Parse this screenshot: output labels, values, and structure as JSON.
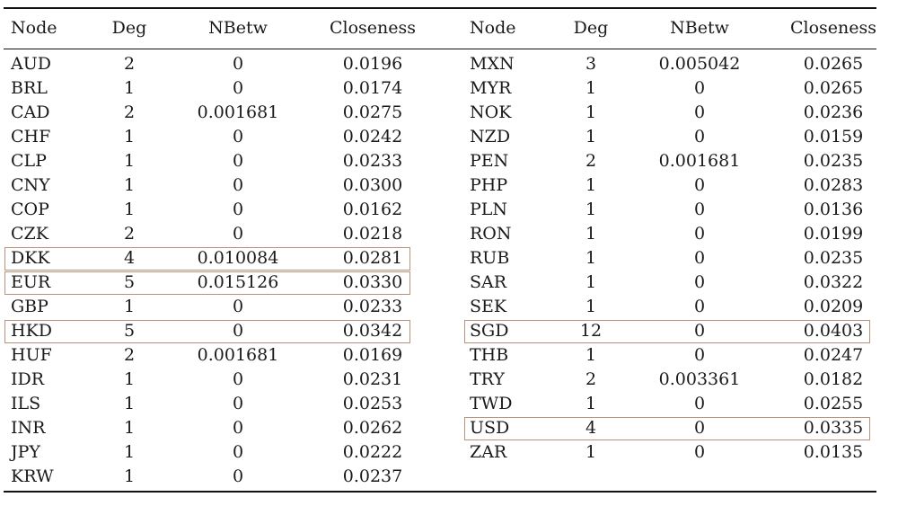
{
  "columns": [
    "Node",
    "Deg",
    "NBetw",
    "Closeness"
  ],
  "left_rows": [
    {
      "node": "AUD",
      "deg": "2",
      "nbetw": "0",
      "closeness": "0.0196"
    },
    {
      "node": "BRL",
      "deg": "1",
      "nbetw": "0",
      "closeness": "0.0174"
    },
    {
      "node": "CAD",
      "deg": "2",
      "nbetw": "0.001681",
      "closeness": "0.0275"
    },
    {
      "node": "CHF",
      "deg": "1",
      "nbetw": "0",
      "closeness": "0.0242"
    },
    {
      "node": "CLP",
      "deg": "1",
      "nbetw": "0",
      "closeness": "0.0233"
    },
    {
      "node": "CNY",
      "deg": "1",
      "nbetw": "0",
      "closeness": "0.0300"
    },
    {
      "node": "COP",
      "deg": "1",
      "nbetw": "0",
      "closeness": "0.0162"
    },
    {
      "node": "CZK",
      "deg": "2",
      "nbetw": "0",
      "closeness": "0.0218"
    },
    {
      "node": "DKK",
      "deg": "4",
      "nbetw": "0.010084",
      "closeness": "0.0281",
      "highlighted": true
    },
    {
      "node": "EUR",
      "deg": "5",
      "nbetw": "0.015126",
      "closeness": "0.0330",
      "highlighted": true
    },
    {
      "node": "GBP",
      "deg": "1",
      "nbetw": "0",
      "closeness": "0.0233"
    },
    {
      "node": "HKD",
      "deg": "5",
      "nbetw": "0",
      "closeness": "0.0342",
      "highlighted": true
    },
    {
      "node": "HUF",
      "deg": "2",
      "nbetw": "0.001681",
      "closeness": "0.0169"
    },
    {
      "node": "IDR",
      "deg": "1",
      "nbetw": "0",
      "closeness": "0.0231"
    },
    {
      "node": "ILS",
      "deg": "1",
      "nbetw": "0",
      "closeness": "0.0253"
    },
    {
      "node": "INR",
      "deg": "1",
      "nbetw": "0",
      "closeness": "0.0262"
    },
    {
      "node": "JPY",
      "deg": "1",
      "nbetw": "0",
      "closeness": "0.0222"
    },
    {
      "node": "KRW",
      "deg": "1",
      "nbetw": "0",
      "closeness": "0.0237"
    }
  ],
  "right_rows": [
    {
      "node": "MXN",
      "deg": "3",
      "nbetw": "0.005042",
      "closeness": "0.0265"
    },
    {
      "node": "MYR",
      "deg": "1",
      "nbetw": "0",
      "closeness": "0.0265"
    },
    {
      "node": "NOK",
      "deg": "1",
      "nbetw": "0",
      "closeness": "0.0236"
    },
    {
      "node": "NZD",
      "deg": "1",
      "nbetw": "0",
      "closeness": "0.0159"
    },
    {
      "node": "PEN",
      "deg": "2",
      "nbetw": "0.001681",
      "closeness": "0.0235"
    },
    {
      "node": "PHP",
      "deg": "1",
      "nbetw": "0",
      "closeness": "0.0283"
    },
    {
      "node": "PLN",
      "deg": "1",
      "nbetw": "0",
      "closeness": "0.0136"
    },
    {
      "node": "RON",
      "deg": "1",
      "nbetw": "0",
      "closeness": "0.0199"
    },
    {
      "node": "RUB",
      "deg": "1",
      "nbetw": "0",
      "closeness": "0.0235"
    },
    {
      "node": "SAR",
      "deg": "1",
      "nbetw": "0",
      "closeness": "0.0322"
    },
    {
      "node": "SEK",
      "deg": "1",
      "nbetw": "0",
      "closeness": "0.0209"
    },
    {
      "node": "SGD",
      "deg": "12",
      "nbetw": "0",
      "closeness": "0.0403",
      "highlighted": true
    },
    {
      "node": "THB",
      "deg": "1",
      "nbetw": "0",
      "closeness": "0.0247"
    },
    {
      "node": "TRY",
      "deg": "2",
      "nbetw": "0.003361",
      "closeness": "0.0182"
    },
    {
      "node": "TWD",
      "deg": "1",
      "nbetw": "0",
      "closeness": "0.0255"
    },
    {
      "node": "USD",
      "deg": "4",
      "nbetw": "0",
      "closeness": "0.0335",
      "highlighted": true
    },
    {
      "node": "ZAR",
      "deg": "1",
      "nbetw": "0",
      "closeness": "0.0135"
    }
  ],
  "colors": {
    "highlight_border": "#b8927a",
    "rule": "#111111",
    "text": "#1a1a1a"
  }
}
